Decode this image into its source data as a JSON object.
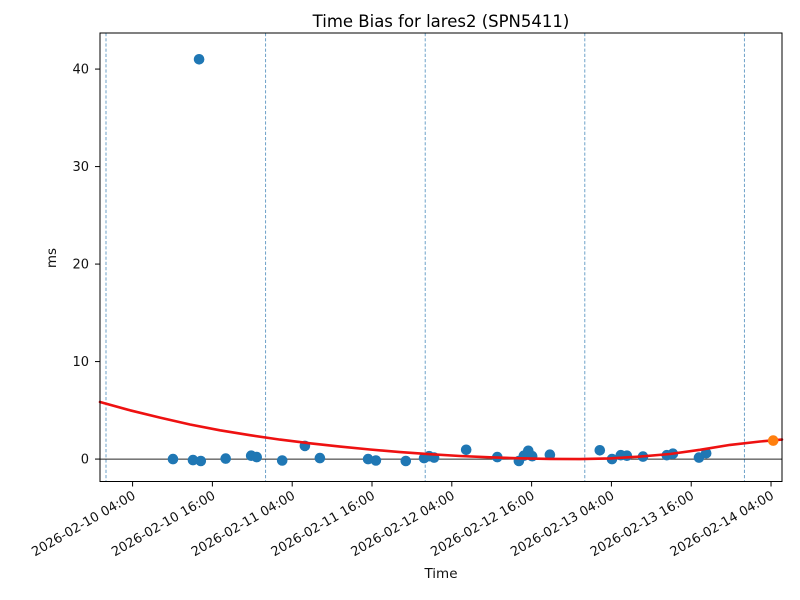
{
  "chart_data": {
    "type": "scatter",
    "title": "Time Bias for lares2 (SPN5411)",
    "xlabel": "Time",
    "ylabel": "ms",
    "ylim": [
      -2.3,
      43.7
    ],
    "yticks": [
      0,
      10,
      20,
      30,
      40
    ],
    "xlim_hours": [
      -0.9,
      101.65
    ],
    "xtick_labels": [
      "2026-02-10 04:00",
      "2026-02-10 16:00",
      "2026-02-11 04:00",
      "2026-02-11 16:00",
      "2026-02-12 04:00",
      "2026-02-12 16:00",
      "2026-02-13 04:00",
      "2026-02-13 16:00",
      "2026-02-14 04:00"
    ],
    "day_gridlines": [
      "2026-02-10 00:00",
      "2026-02-11 00:00",
      "2026-02-12 00:00",
      "2026-02-13 00:00",
      "2026-02-14 00:00"
    ],
    "grid": "vertical-dashed-daily",
    "legend": "none",
    "zero_line": true,
    "colors": {
      "scatter": "#1f77b4",
      "latest_point": "#ff7f0e",
      "fit_line": "#ee1111",
      "gridline": "#5e97c2",
      "axis": "#000000",
      "zero_line": "#262626"
    },
    "series": [
      {
        "name": "bias-measurements",
        "kind": "scatter",
        "color": "#1f77b4",
        "points": [
          [
            "2026-02-10 10:05",
            0.0
          ],
          [
            "2026-02-10 13:05",
            -0.1
          ],
          [
            "2026-02-10 14:00",
            41.0
          ],
          [
            "2026-02-10 14:15",
            -0.2
          ],
          [
            "2026-02-10 18:00",
            0.05
          ],
          [
            "2026-02-10 21:50",
            0.35
          ],
          [
            "2026-02-10 22:40",
            0.2
          ],
          [
            "2026-02-11 02:30",
            -0.15
          ],
          [
            "2026-02-11 05:55",
            1.35
          ],
          [
            "2026-02-11 08:10",
            0.1
          ],
          [
            "2026-02-11 15:25",
            0.0
          ],
          [
            "2026-02-11 16:35",
            -0.15
          ],
          [
            "2026-02-11 21:05",
            -0.2
          ],
          [
            "2026-02-11 23:50",
            0.1
          ],
          [
            "2026-02-12 00:35",
            0.3
          ],
          [
            "2026-02-12 01:20",
            0.15
          ],
          [
            "2026-02-12 06:10",
            0.95
          ],
          [
            "2026-02-12 10:50",
            0.2
          ],
          [
            "2026-02-12 14:05",
            -0.2
          ],
          [
            "2026-02-12 14:50",
            0.35
          ],
          [
            "2026-02-12 15:30",
            0.85
          ],
          [
            "2026-02-12 16:05",
            0.3
          ],
          [
            "2026-02-12 18:45",
            0.45
          ],
          [
            "2026-02-13 02:15",
            0.9
          ],
          [
            "2026-02-13 04:05",
            0.0
          ],
          [
            "2026-02-13 05:25",
            0.4
          ],
          [
            "2026-02-13 06:20",
            0.35
          ],
          [
            "2026-02-13 08:45",
            0.25
          ],
          [
            "2026-02-13 12:20",
            0.4
          ],
          [
            "2026-02-13 13:15",
            0.55
          ],
          [
            "2026-02-13 17:10",
            0.15
          ],
          [
            "2026-02-13 18:15",
            0.6
          ]
        ]
      },
      {
        "name": "fit-curve",
        "kind": "line",
        "color": "#ee1111",
        "samples_hours_ms": [
          [
            -0.9,
            5.85
          ],
          [
            3.61,
            5.0
          ],
          [
            8.12,
            4.25
          ],
          [
            12.63,
            3.55
          ],
          [
            17.14,
            2.95
          ],
          [
            21.65,
            2.45
          ],
          [
            26.17,
            2.0
          ],
          [
            30.68,
            1.62
          ],
          [
            35.19,
            1.28
          ],
          [
            39.7,
            0.98
          ],
          [
            44.21,
            0.72
          ],
          [
            48.72,
            0.5
          ],
          [
            53.23,
            0.32
          ],
          [
            57.74,
            0.18
          ],
          [
            62.26,
            0.08
          ],
          [
            66.77,
            0.02
          ],
          [
            71.28,
            0.0
          ],
          [
            75.79,
            0.07
          ],
          [
            80.3,
            0.25
          ],
          [
            84.81,
            0.52
          ],
          [
            89.32,
            0.95
          ],
          [
            93.83,
            1.45
          ],
          [
            98.35,
            1.8
          ],
          [
            101.65,
            2.0
          ]
        ]
      },
      {
        "name": "latest-measurement",
        "kind": "scatter",
        "color": "#ff7f0e",
        "points": [
          [
            "2026-02-14 04:20",
            1.9
          ]
        ]
      }
    ]
  }
}
